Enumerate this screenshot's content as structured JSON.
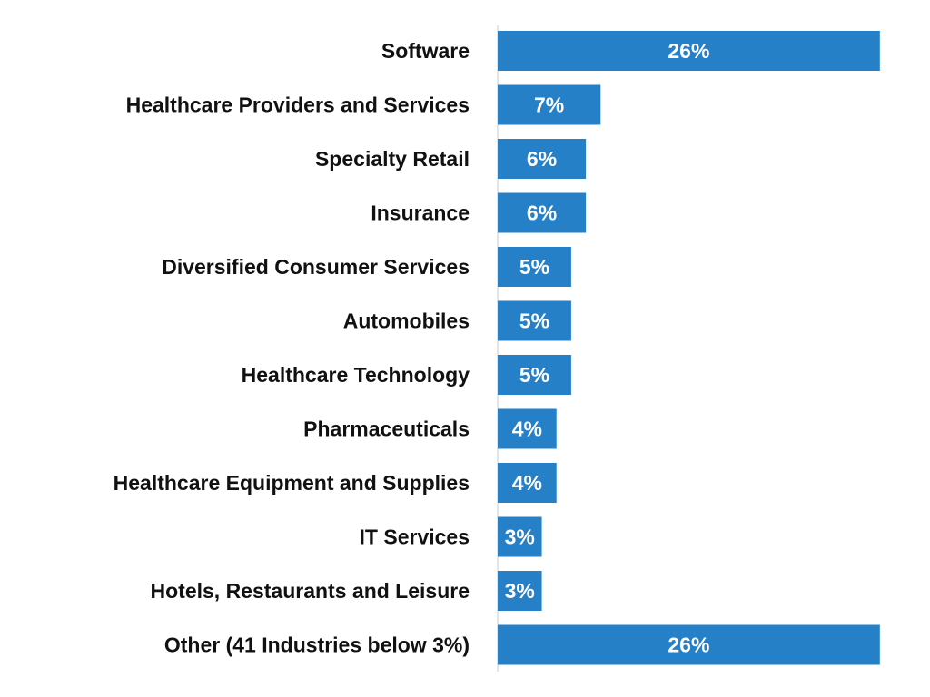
{
  "chart_data": {
    "type": "bar",
    "orientation": "horizontal",
    "categories": [
      "Software",
      "Healthcare Providers and Services",
      "Specialty Retail",
      "Insurance",
      "Diversified Consumer Services",
      "Automobiles",
      "Healthcare Technology",
      "Pharmaceuticals",
      "Healthcare Equipment and Supplies",
      "IT Services",
      "Hotels, Restaurants and Leisure",
      "Other (41 Industries below 3%)"
    ],
    "values": [
      26,
      7,
      6,
      6,
      5,
      5,
      5,
      4,
      4,
      3,
      3,
      26
    ],
    "value_labels": [
      "26%",
      "7%",
      "6%",
      "6%",
      "5%",
      "5%",
      "5%",
      "4%",
      "4%",
      "3%",
      "3%",
      "26%"
    ],
    "title": "",
    "xlabel": "",
    "ylabel": "",
    "xlim": [
      0,
      27
    ],
    "grid": false,
    "legend": "none",
    "colors": {
      "bar": "#2680c8",
      "axis": "#c8c8c8",
      "label_text": "#111111",
      "value_text": "#ffffff"
    }
  }
}
